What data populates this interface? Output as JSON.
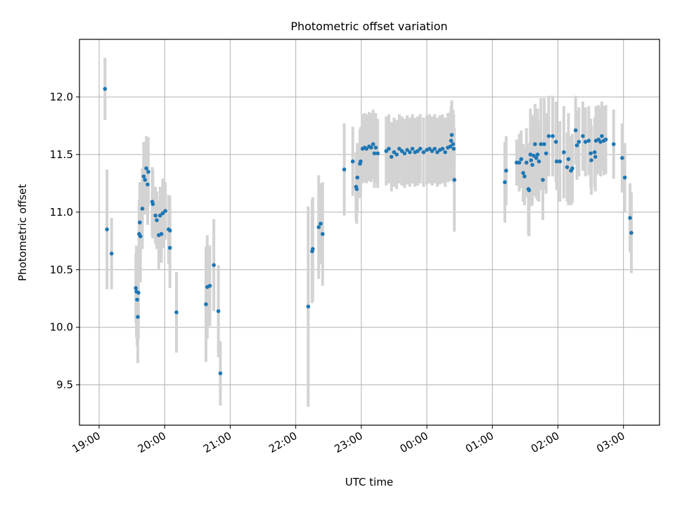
{
  "chart_data": {
    "type": "scatter",
    "title": "Photometric offset variation",
    "xlabel": "UTC time",
    "ylabel": "Photometric offset",
    "grid": true,
    "x_unit": "hours since 19:00 UTC",
    "xlim": [
      -0.3,
      8.55
    ],
    "ylim": [
      9.15,
      12.5
    ],
    "xticks": [
      {
        "value": 0,
        "label": "19:00"
      },
      {
        "value": 1,
        "label": "20:00"
      },
      {
        "value": 2,
        "label": "21:00"
      },
      {
        "value": 3,
        "label": "22:00"
      },
      {
        "value": 4,
        "label": "23:00"
      },
      {
        "value": 5,
        "label": "00:00"
      },
      {
        "value": 6,
        "label": "01:00"
      },
      {
        "value": 7,
        "label": "02:00"
      },
      {
        "value": 8,
        "label": "03:00"
      }
    ],
    "yticks": [
      {
        "value": 9.5,
        "label": "9.5"
      },
      {
        "value": 10.0,
        "label": "10.0"
      },
      {
        "value": 10.5,
        "label": "10.5"
      },
      {
        "value": 11.0,
        "label": "11.0"
      },
      {
        "value": 11.5,
        "label": "11.5"
      },
      {
        "value": 12.0,
        "label": "12.0"
      }
    ],
    "marker_color": "#1f77b4",
    "errorbar_color": "#d3d3d3",
    "points": [
      [
        0.09,
        12.07,
        0.27
      ],
      [
        0.12,
        10.85,
        0.52
      ],
      [
        0.19,
        10.64,
        0.31
      ],
      [
        0.56,
        10.34,
        0.3
      ],
      [
        0.57,
        10.31,
        0.4
      ],
      [
        0.58,
        10.24,
        0.4
      ],
      [
        0.59,
        10.09,
        0.4
      ],
      [
        0.6,
        10.3,
        0.4
      ],
      [
        0.61,
        10.81,
        0.3
      ],
      [
        0.62,
        10.91,
        0.35
      ],
      [
        0.63,
        10.79,
        0.4
      ],
      [
        0.66,
        11.03,
        0.35
      ],
      [
        0.68,
        11.31,
        0.3
      ],
      [
        0.7,
        11.28,
        0.3
      ],
      [
        0.72,
        11.38,
        0.28
      ],
      [
        0.74,
        11.24,
        0.35
      ],
      [
        0.75,
        11.35,
        0.3
      ],
      [
        0.81,
        11.09,
        0.3
      ],
      [
        0.82,
        11.07,
        0.3
      ],
      [
        0.86,
        10.97,
        0.25
      ],
      [
        0.88,
        10.93,
        0.25
      ],
      [
        0.91,
        10.8,
        0.3
      ],
      [
        0.93,
        10.97,
        0.25
      ],
      [
        0.95,
        10.81,
        0.25
      ],
      [
        0.97,
        10.99,
        0.3
      ],
      [
        1.01,
        11.01,
        0.25
      ],
      [
        1.06,
        10.85,
        0.3
      ],
      [
        1.08,
        10.84,
        0.3
      ],
      [
        1.08,
        10.69,
        0.35
      ],
      [
        1.18,
        10.13,
        0.35
      ],
      [
        1.63,
        10.2,
        0.5
      ],
      [
        1.65,
        10.35,
        0.45
      ],
      [
        1.69,
        10.36,
        0.35
      ],
      [
        1.75,
        10.54,
        0.4
      ],
      [
        1.82,
        10.14,
        0.4
      ],
      [
        1.85,
        9.6,
        0.28
      ],
      [
        3.19,
        10.18,
        0.87
      ],
      [
        3.25,
        10.66,
        0.45
      ],
      [
        3.26,
        10.68,
        0.45
      ],
      [
        3.35,
        10.87,
        0.45
      ],
      [
        3.38,
        10.9,
        0.35
      ],
      [
        3.41,
        10.81,
        0.45
      ],
      [
        3.74,
        11.37,
        0.4
      ],
      [
        3.87,
        11.44,
        0.3
      ],
      [
        3.92,
        11.22,
        0.3
      ],
      [
        3.93,
        11.2,
        0.3
      ],
      [
        3.94,
        11.3,
        0.3
      ],
      [
        3.98,
        11.42,
        0.3
      ],
      [
        3.99,
        11.44,
        0.3
      ],
      [
        4.02,
        11.55,
        0.3
      ],
      [
        4.05,
        11.56,
        0.3
      ],
      [
        4.08,
        11.55,
        0.3
      ],
      [
        4.12,
        11.57,
        0.3
      ],
      [
        4.15,
        11.56,
        0.3
      ],
      [
        4.18,
        11.59,
        0.3
      ],
      [
        4.2,
        11.51,
        0.3
      ],
      [
        4.22,
        11.56,
        0.3
      ],
      [
        4.25,
        11.51,
        0.3
      ],
      [
        4.38,
        11.53,
        0.3
      ],
      [
        4.42,
        11.55,
        0.3
      ],
      [
        4.46,
        11.48,
        0.3
      ],
      [
        4.5,
        11.52,
        0.3
      ],
      [
        4.54,
        11.5,
        0.3
      ],
      [
        4.58,
        11.55,
        0.3
      ],
      [
        4.62,
        11.53,
        0.3
      ],
      [
        4.66,
        11.51,
        0.3
      ],
      [
        4.7,
        11.54,
        0.3
      ],
      [
        4.74,
        11.52,
        0.3
      ],
      [
        4.78,
        11.55,
        0.3
      ],
      [
        4.82,
        11.52,
        0.3
      ],
      [
        4.86,
        11.53,
        0.3
      ],
      [
        4.9,
        11.55,
        0.3
      ],
      [
        4.95,
        11.52,
        0.3
      ],
      [
        5.0,
        11.54,
        0.3
      ],
      [
        5.04,
        11.55,
        0.3
      ],
      [
        5.08,
        11.53,
        0.3
      ],
      [
        5.12,
        11.55,
        0.3
      ],
      [
        5.16,
        11.52,
        0.3
      ],
      [
        5.2,
        11.54,
        0.3
      ],
      [
        5.24,
        11.55,
        0.3
      ],
      [
        5.28,
        11.52,
        0.3
      ],
      [
        5.32,
        11.56,
        0.3
      ],
      [
        5.36,
        11.57,
        0.3
      ],
      [
        5.37,
        11.62,
        0.3
      ],
      [
        5.38,
        11.67,
        0.3
      ],
      [
        5.4,
        11.59,
        0.3
      ],
      [
        5.41,
        11.55,
        0.3
      ],
      [
        5.42,
        11.28,
        0.45
      ],
      [
        6.19,
        11.26,
        0.35
      ],
      [
        6.21,
        11.36,
        0.3
      ],
      [
        6.37,
        11.43,
        0.2
      ],
      [
        6.41,
        11.43,
        0.25
      ],
      [
        6.44,
        11.46,
        0.25
      ],
      [
        6.47,
        11.34,
        0.25
      ],
      [
        6.49,
        11.31,
        0.25
      ],
      [
        6.52,
        11.43,
        0.3
      ],
      [
        6.55,
        11.2,
        0.4
      ],
      [
        6.56,
        11.19,
        0.4
      ],
      [
        6.58,
        11.5,
        0.4
      ],
      [
        6.59,
        11.45,
        0.4
      ],
      [
        6.61,
        11.41,
        0.35
      ],
      [
        6.63,
        11.49,
        0.35
      ],
      [
        6.65,
        11.59,
        0.35
      ],
      [
        6.67,
        11.47,
        0.35
      ],
      [
        6.69,
        11.5,
        0.4
      ],
      [
        6.71,
        11.44,
        0.35
      ],
      [
        6.74,
        11.59,
        0.4
      ],
      [
        6.77,
        11.28,
        0.35
      ],
      [
        6.79,
        11.59,
        0.4
      ],
      [
        6.82,
        11.51,
        0.35
      ],
      [
        6.86,
        11.66,
        0.35
      ],
      [
        6.92,
        11.66,
        0.35
      ],
      [
        6.97,
        11.61,
        0.35
      ],
      [
        6.98,
        11.44,
        0.25
      ],
      [
        7.03,
        11.44,
        0.35
      ],
      [
        7.09,
        11.52,
        0.4
      ],
      [
        7.14,
        11.39,
        0.3
      ],
      [
        7.16,
        11.46,
        0.4
      ],
      [
        7.2,
        11.36,
        0.3
      ],
      [
        7.22,
        11.38,
        0.3
      ],
      [
        7.27,
        11.71,
        0.3
      ],
      [
        7.29,
        11.58,
        0.3
      ],
      [
        7.32,
        11.61,
        0.3
      ],
      [
        7.38,
        11.66,
        0.3
      ],
      [
        7.42,
        11.61,
        0.3
      ],
      [
        7.47,
        11.62,
        0.3
      ],
      [
        7.5,
        11.51,
        0.3
      ],
      [
        7.51,
        11.45,
        0.3
      ],
      [
        7.56,
        11.52,
        0.3
      ],
      [
        7.57,
        11.48,
        0.3
      ],
      [
        7.58,
        11.62,
        0.3
      ],
      [
        7.62,
        11.63,
        0.3
      ],
      [
        7.65,
        11.61,
        0.3
      ],
      [
        7.67,
        11.66,
        0.3
      ],
      [
        7.7,
        11.62,
        0.3
      ],
      [
        7.73,
        11.63,
        0.3
      ],
      [
        7.85,
        11.59,
        0.3
      ],
      [
        7.98,
        11.47,
        0.3
      ],
      [
        8.02,
        11.3,
        0.3
      ],
      [
        8.1,
        10.95,
        0.3
      ],
      [
        8.12,
        10.82,
        0.35
      ]
    ]
  }
}
